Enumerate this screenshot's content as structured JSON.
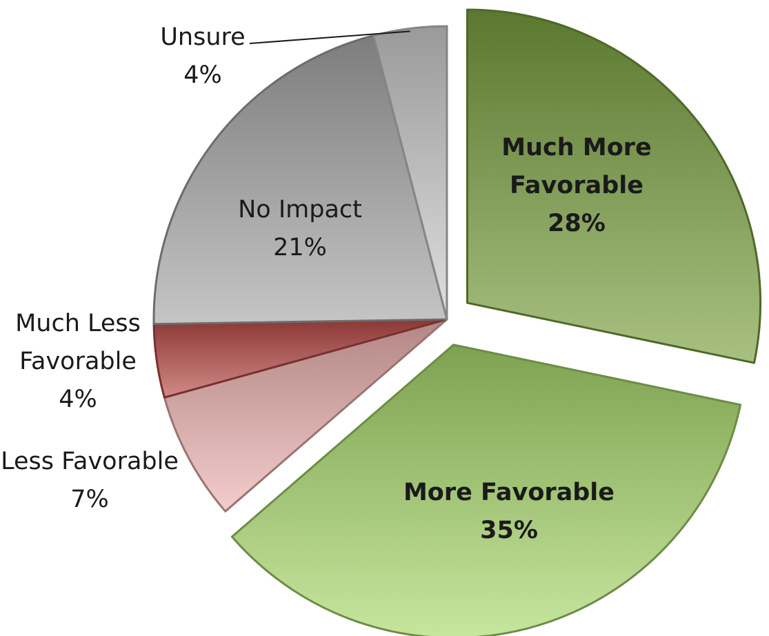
{
  "chart_data": {
    "type": "pie",
    "title": "",
    "slices": [
      {
        "label_lines": [
          "Much More",
          "Favorable"
        ],
        "value": 28,
        "value_text": "28%",
        "color": "#79A03E",
        "bold": true,
        "exploded": true,
        "label_inside": true,
        "leader_line": false
      },
      {
        "label_lines": [
          "More Favorable"
        ],
        "value": 35,
        "value_text": "35%",
        "color": "#A8D86A",
        "bold": true,
        "exploded": true,
        "label_inside": true,
        "leader_line": false
      },
      {
        "label_lines": [
          "Less Favorable"
        ],
        "value": 7,
        "value_text": "7%",
        "color": "#EDB2B0",
        "bold": false,
        "exploded": false,
        "label_inside": false,
        "leader_line": false
      },
      {
        "label_lines": [
          "Much Less",
          "Favorable"
        ],
        "value": 4,
        "value_text": "4%",
        "color": "#B94A47",
        "bold": false,
        "exploded": false,
        "label_inside": false,
        "leader_line": false
      },
      {
        "label_lines": [
          "No Impact"
        ],
        "value": 21,
        "value_text": "21%",
        "color": "#A6A6A6",
        "bold": false,
        "exploded": false,
        "label_inside": true,
        "leader_line": false
      },
      {
        "label_lines": [
          "Unsure"
        ],
        "value": 4,
        "value_text": "4%",
        "color": "#CDCDCD",
        "bold": false,
        "exploded": false,
        "label_inside": false,
        "leader_line": true
      }
    ]
  }
}
